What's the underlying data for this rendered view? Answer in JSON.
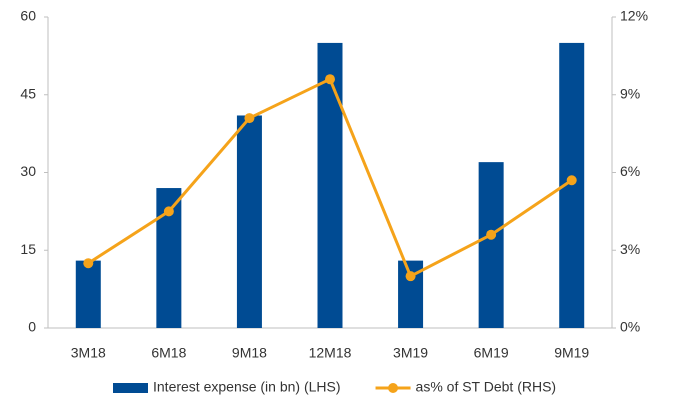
{
  "chart_data": {
    "type": "bar",
    "categories": [
      "3M18",
      "6M18",
      "9M18",
      "12M18",
      "3M19",
      "6M19",
      "9M19"
    ],
    "series": [
      {
        "name": "Interest expense (in bn) (LHS)",
        "type": "bar",
        "color": "#004b93",
        "values": [
          13,
          27,
          41,
          55,
          13,
          32,
          55
        ]
      },
      {
        "name": "as% of ST Debt (RHS)",
        "type": "line",
        "axis": "y2",
        "color": "#f5a31a",
        "values": [
          2.5,
          4.5,
          8.1,
          9.6,
          2.0,
          3.6,
          5.7
        ]
      }
    ],
    "ylim": [
      0,
      60
    ],
    "yticks": [
      0,
      15,
      30,
      45,
      60
    ],
    "y2lim": [
      0,
      12
    ],
    "y2ticks": [
      {
        "value": 0,
        "label": "0%"
      },
      {
        "value": 3,
        "label": "3%"
      },
      {
        "value": 6,
        "label": "6%"
      },
      {
        "value": 9,
        "label": "9%"
      },
      {
        "value": 12,
        "label": "12%"
      }
    ],
    "grid": false,
    "legend": "bottom"
  }
}
